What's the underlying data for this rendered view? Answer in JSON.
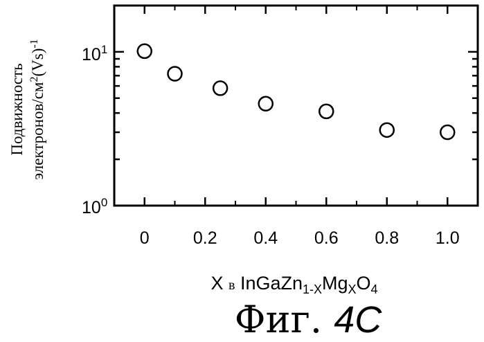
{
  "chart_data": {
    "type": "scatter",
    "title": "",
    "ylabel_line1": "Подвижность",
    "ylabel_line2_main": "электронов/см",
    "ylabel_line2_sup": "2",
    "ylabel_line2_tail": "(Vs)",
    "ylabel_line2_tail_sup": "-1",
    "xlabel_x": "X",
    "xlabel_in": "в",
    "xlabel_formula": [
      "InGaZn",
      "1-X",
      "Mg",
      "X",
      "O",
      "4"
    ],
    "x": [
      0,
      0.1,
      0.25,
      0.4,
      0.6,
      0.8,
      1.0
    ],
    "y": [
      10.1,
      7.2,
      5.8,
      4.6,
      4.1,
      3.1,
      3.0
    ],
    "xlim": [
      -0.1,
      1.1
    ],
    "ylim": [
      1,
      20
    ],
    "yscale": "log",
    "xticks": [
      0,
      0.2,
      0.4,
      0.6,
      0.8,
      1.0
    ],
    "xtick_labels": [
      "0",
      "0.2",
      "0.4",
      "0.6",
      "0.8",
      "1.0"
    ],
    "yticks": [
      {
        "base": "10",
        "exp": "1",
        "value": 10
      },
      {
        "base": "10",
        "exp": "0",
        "value": 1
      }
    ],
    "marker": "open-circle",
    "color": "#000000",
    "grid": false,
    "legend": "none"
  },
  "caption": {
    "prefix": "Фиг.",
    "number": "4C"
  }
}
